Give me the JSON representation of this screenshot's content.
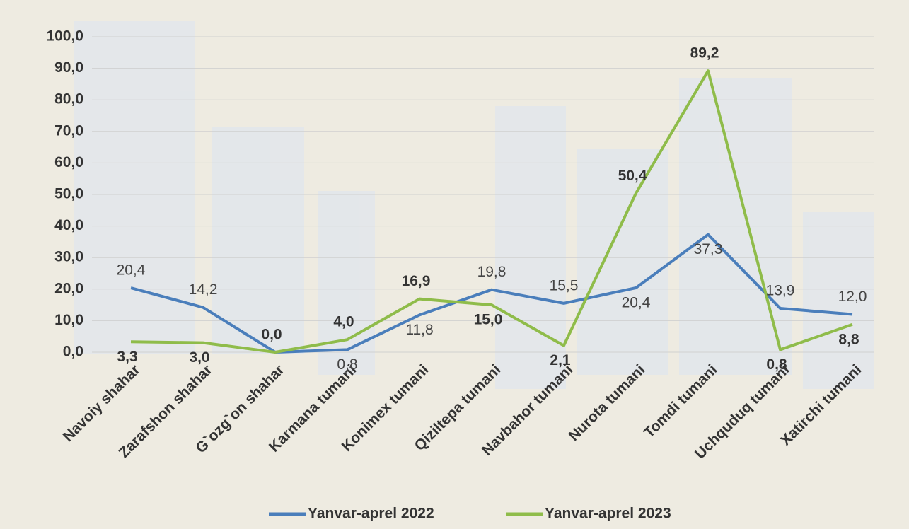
{
  "chart_data": {
    "type": "line",
    "categories": [
      "Navoiy shahar",
      "Zarafshon shahar",
      "G`ozg`on shahar",
      "Karmana tumani",
      "Konimex tumani",
      "Qiziltepa tumani",
      "Navbahor tumani",
      "Nurota tumani",
      "Tomdi tumani",
      "Uchquduq tumani",
      "Xatirchi tumani"
    ],
    "series": [
      {
        "name": "Yanvar-aprel 2022",
        "color": "#4a7ebb",
        "values": [
          20.4,
          14.2,
          0,
          0.8,
          11.8,
          19.8,
          15.5,
          20.4,
          37.3,
          13.9,
          12.0
        ],
        "value_labels": [
          "20,4",
          "14,2",
          null,
          "0,8",
          "11,8",
          "19,8",
          "15,5",
          "20,4",
          "37,3",
          "13,9",
          "12,0"
        ]
      },
      {
        "name": "Yanvar-aprel 2023",
        "color": "#8fbc4a",
        "values": [
          3.3,
          3.0,
          0.0,
          4.0,
          16.9,
          15.0,
          2.1,
          50.4,
          89.2,
          0.8,
          8.8
        ],
        "value_labels": [
          "3,3",
          "3,0",
          "0,0",
          "4,0",
          "16,9",
          "15,0",
          "2,1",
          "50,4",
          "89,2",
          "0,8",
          "8,8"
        ]
      }
    ],
    "ylim": [
      0,
      100
    ],
    "yticks": [
      {
        "value": 0,
        "label": "0,0"
      },
      {
        "value": 10,
        "label": "10,0"
      },
      {
        "value": 20,
        "label": "20,0"
      },
      {
        "value": 30,
        "label": "30,0"
      },
      {
        "value": 40,
        "label": "40,0"
      },
      {
        "value": 50,
        "label": "50,0"
      },
      {
        "value": 60,
        "label": "60,0"
      },
      {
        "value": 70,
        "label": "70,0"
      },
      {
        "value": 80,
        "label": "80,0"
      },
      {
        "value": 90,
        "label": "90,0"
      },
      {
        "value": 100,
        "label": "100,0"
      }
    ],
    "grid": true,
    "legend": "bottom"
  }
}
